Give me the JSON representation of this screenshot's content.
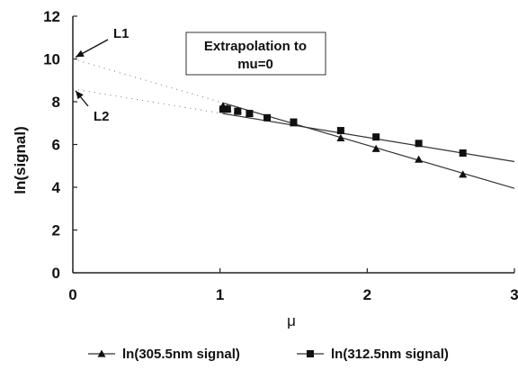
{
  "chart_data": {
    "type": "line",
    "title": "",
    "xlabel": "μ",
    "ylabel": "ln(signal)",
    "xlim": [
      0,
      3
    ],
    "ylim": [
      0,
      12
    ],
    "x_ticks": [
      0,
      1,
      2,
      3
    ],
    "y_ticks": [
      0,
      2,
      4,
      6,
      8,
      10,
      12
    ],
    "grid": false,
    "legend_position": "bottom",
    "annotation_box": {
      "line1": "Extrapolation to",
      "line2": "mu=0"
    },
    "annotations": [
      {
        "text": "L1",
        "points_to": [
          0,
          10.0
        ]
      },
      {
        "text": "L2",
        "points_to": [
          0,
          8.6
        ]
      }
    ],
    "series": [
      {
        "name": "ln(305.5nm signal)",
        "marker": "triangle",
        "x": [
          1.02,
          1.05,
          1.12,
          1.2,
          1.5,
          1.82,
          2.06,
          2.35,
          2.65
        ],
        "y": [
          7.8,
          7.7,
          7.6,
          7.45,
          7.0,
          6.3,
          5.8,
          5.3,
          4.6
        ],
        "fit": {
          "x": [
            0,
            3
          ],
          "y": [
            10.0,
            3.95
          ]
        }
      },
      {
        "name": "ln(312.5nm signal)",
        "marker": "square",
        "x": [
          1.02,
          1.05,
          1.12,
          1.2,
          1.32,
          1.5,
          1.82,
          2.06,
          2.35,
          2.65
        ],
        "y": [
          7.65,
          7.65,
          7.55,
          7.45,
          7.25,
          7.05,
          6.65,
          6.35,
          6.05,
          5.6
        ],
        "fit": {
          "x": [
            0,
            3
          ],
          "y": [
            8.6,
            5.2
          ]
        }
      }
    ]
  }
}
